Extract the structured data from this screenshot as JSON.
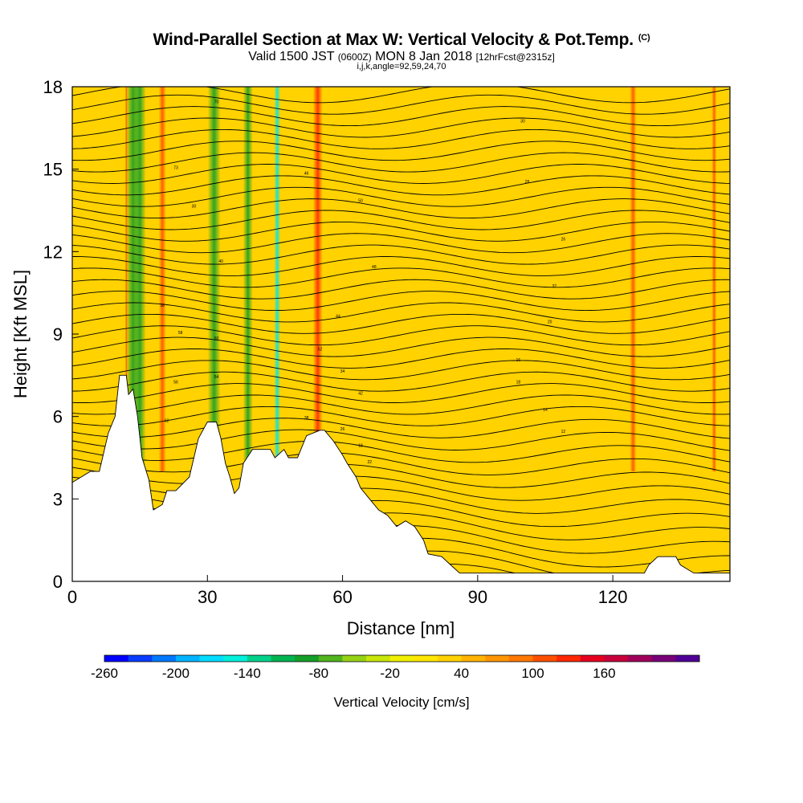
{
  "title": "Wind-Parallel Section at Max W: Vertical Velocity & Pot.Temp.",
  "title_mark": "(C)",
  "subtitle_main_a": "Valid 1500 JST ",
  "subtitle_small_a": "(0600Z)",
  "subtitle_main_b": " MON 8 Jan 2018 ",
  "subtitle_small_b": "[12hrFcst@2315z]",
  "subsub": "i,j,k,angle=92,59,24,70",
  "chart_data": {
    "type": "heatmap",
    "xlabel": "Distance [nm]",
    "ylabel": "Height [Kft MSL]",
    "xlim": [
      0,
      146
    ],
    "ylim": [
      0,
      18
    ],
    "x_ticks": [
      0,
      30,
      60,
      90,
      120
    ],
    "y_ticks": [
      0,
      3,
      6,
      9,
      12,
      15,
      18
    ],
    "colorbar": {
      "title": "Vertical Velocity [cm/s]",
      "tick_labels": [
        "-260",
        "-200",
        "-140",
        "-80",
        "-20",
        "40",
        "100",
        "160"
      ],
      "colors": [
        "#0000ff",
        "#0a3cff",
        "#0078ff",
        "#00b4ff",
        "#00dcff",
        "#00f0dc",
        "#00d28c",
        "#00b450",
        "#14a028",
        "#50b41e",
        "#96d214",
        "#c8e60a",
        "#f0f000",
        "#ffe600",
        "#ffd200",
        "#ffb400",
        "#ff9600",
        "#ff7800",
        "#ff5000",
        "#ff2800",
        "#e6001e",
        "#c8003c",
        "#a0005a",
        "#780078",
        "#500096"
      ]
    },
    "terrain": [
      [
        0,
        3.6
      ],
      [
        2,
        3.8
      ],
      [
        4,
        4.0
      ],
      [
        6,
        4.0
      ],
      [
        8,
        5.4
      ],
      [
        9.5,
        6.0
      ],
      [
        10.5,
        7.5
      ],
      [
        12,
        7.5
      ],
      [
        12.5,
        6.8
      ],
      [
        13.5,
        7.0
      ],
      [
        14.5,
        6.0
      ],
      [
        15.5,
        4.5
      ],
      [
        17,
        3.7
      ],
      [
        18,
        2.6
      ],
      [
        20,
        2.8
      ],
      [
        21,
        3.3
      ],
      [
        23,
        3.3
      ],
      [
        26,
        3.8
      ],
      [
        28,
        5.2
      ],
      [
        30,
        5.8
      ],
      [
        32,
        5.8
      ],
      [
        33,
        5.2
      ],
      [
        34,
        4.3
      ],
      [
        35,
        3.8
      ],
      [
        36,
        3.2
      ],
      [
        37,
        3.4
      ],
      [
        38,
        4.3
      ],
      [
        40,
        4.8
      ],
      [
        44,
        4.8
      ],
      [
        45,
        4.5
      ],
      [
        47,
        4.8
      ],
      [
        48,
        4.5
      ],
      [
        50,
        4.5
      ],
      [
        52,
        5.3
      ],
      [
        55,
        5.5
      ],
      [
        56,
        5.5
      ],
      [
        58,
        5.1
      ],
      [
        60,
        4.6
      ],
      [
        61,
        4.3
      ],
      [
        63,
        3.8
      ],
      [
        64,
        3.4
      ],
      [
        66,
        3.0
      ],
      [
        68,
        2.6
      ],
      [
        70,
        2.4
      ],
      [
        72,
        2.0
      ],
      [
        74,
        2.2
      ],
      [
        76,
        2.0
      ],
      [
        78,
        1.5
      ],
      [
        79,
        1.0
      ],
      [
        82,
        0.9
      ],
      [
        84,
        0.6
      ],
      [
        86,
        0.3
      ],
      [
        95,
        0.3
      ],
      [
        110,
        0.3
      ],
      [
        118,
        0.3
      ],
      [
        127,
        0.3
      ],
      [
        128,
        0.6
      ],
      [
        130,
        0.9
      ],
      [
        134,
        0.9
      ],
      [
        135,
        0.6
      ],
      [
        138,
        0.3
      ],
      [
        146,
        0.3
      ]
    ],
    "velocity_bands": [
      {
        "center": 13.5,
        "w": 18,
        "v": 2
      },
      {
        "center": 15.0,
        "w": 15,
        "v": 2
      },
      {
        "center": 20.0,
        "w": 9,
        "v": 1
      },
      {
        "center": 31.5,
        "w": 16,
        "v": 2
      },
      {
        "center": 39.0,
        "w": 12,
        "v": 2
      },
      {
        "center": 45.5,
        "w": 8,
        "v": 0
      },
      {
        "center": 12.0,
        "w": 3,
        "v": 1
      },
      {
        "center": 54.5,
        "w": 12,
        "v": 3
      },
      {
        "center": 124.5,
        "w": 8,
        "v": 1
      },
      {
        "center": 142.5,
        "w": 6,
        "v": 1
      }
    ],
    "contour_labels": [
      "70",
      "73",
      "30",
      "40",
      "36",
      "58",
      "60",
      "56",
      "54",
      "62",
      "46",
      "50",
      "48",
      "44",
      "52",
      "34",
      "42",
      "38",
      "26",
      "18",
      "22",
      "30",
      "28",
      "26",
      "32",
      "20",
      "16",
      "18",
      "14",
      "12"
    ]
  }
}
